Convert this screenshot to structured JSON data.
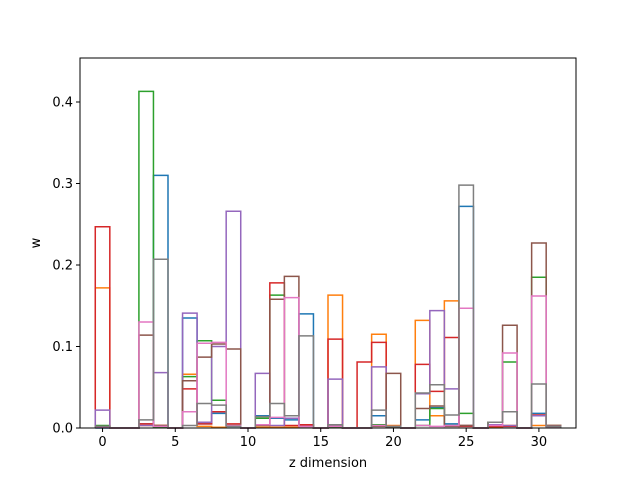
{
  "chart_data": {
    "type": "step",
    "xlabel": "z dimension",
    "ylabel": "w",
    "xlim": [
      -1.55,
      32.55
    ],
    "ylim": [
      0,
      0.454
    ],
    "xticks": [
      0,
      5,
      10,
      15,
      20,
      25,
      30
    ],
    "yticks": [
      0.0,
      0.1,
      0.2,
      0.3,
      0.4
    ],
    "xtick_labels": [
      "0",
      "5",
      "10",
      "15",
      "20",
      "25",
      "30"
    ],
    "ytick_labels": [
      "0.0",
      "0.1",
      "0.2",
      "0.3",
      "0.4"
    ],
    "x": [
      0,
      1,
      2,
      3,
      4,
      5,
      6,
      7,
      8,
      9,
      10,
      11,
      12,
      13,
      14,
      15,
      16,
      17,
      18,
      19,
      20,
      21,
      22,
      23,
      24,
      25,
      26,
      27,
      28,
      29,
      30,
      31
    ],
    "series": [
      {
        "color": "#1f77b4",
        "values": [
          0,
          0,
          0,
          0.005,
          0.31,
          0,
          0.135,
          0.005,
          0.018,
          0.002,
          0,
          0.015,
          0.012,
          0.01,
          0.14,
          0,
          0.002,
          0,
          0,
          0.015,
          0.002,
          0,
          0.01,
          0.025,
          0.005,
          0.272,
          0,
          0.002,
          0.002,
          0,
          0.018,
          0.003
        ]
      },
      {
        "color": "#ff7f0e",
        "values": [
          0.172,
          0,
          0,
          0.003,
          0.003,
          0,
          0.066,
          0.002,
          0.001,
          0.003,
          0,
          0.001,
          0.001,
          0.001,
          0.002,
          0,
          0.163,
          0,
          0,
          0.115,
          0.003,
          0,
          0.132,
          0.015,
          0.156,
          0.003,
          0,
          0.001,
          0.003,
          0,
          0.003,
          0.003
        ]
      },
      {
        "color": "#2ca02c",
        "values": [
          0.003,
          0,
          0,
          0.413,
          0.001,
          0,
          0.063,
          0.107,
          0.034,
          0.003,
          0,
          0.012,
          0.163,
          0.012,
          0.003,
          0,
          0.001,
          0,
          0,
          0.004,
          0.001,
          0,
          0.003,
          0.024,
          0.003,
          0.018,
          0,
          0.007,
          0.081,
          0,
          0.185,
          0.002
        ]
      },
      {
        "color": "#d62728",
        "values": [
          0.247,
          0,
          0,
          0.005,
          0.003,
          0,
          0.048,
          0.005,
          0.02,
          0.005,
          0,
          0.004,
          0.178,
          0.003,
          0.004,
          0,
          0.109,
          0,
          0.081,
          0.105,
          0.002,
          0,
          0.078,
          0.045,
          0.111,
          0.002,
          0,
          0.002,
          0.002,
          0,
          0.016,
          0.002
        ]
      },
      {
        "color": "#9467bd",
        "values": [
          0.022,
          0,
          0,
          0.003,
          0.068,
          0,
          0.141,
          0.007,
          0.1,
          0.266,
          0,
          0.067,
          0.003,
          0.012,
          0.002,
          0,
          0.06,
          0,
          0,
          0.075,
          0.002,
          0,
          0.042,
          0.144,
          0.048,
          0.003,
          0,
          0.004,
          0.003,
          0,
          0.015,
          0.002
        ]
      },
      {
        "color": "#8c564b",
        "values": [
          0.002,
          0,
          0,
          0.114,
          0.003,
          0,
          0.058,
          0.087,
          0.103,
          0.097,
          0,
          0.003,
          0.158,
          0.186,
          0.002,
          0,
          0.002,
          0,
          0,
          0.002,
          0.067,
          0,
          0.024,
          0.027,
          0.002,
          0.003,
          0,
          0.007,
          0.126,
          0,
          0.227,
          0.003
        ]
      },
      {
        "color": "#e377c2",
        "values": [
          0.001,
          0,
          0,
          0.13,
          0.002,
          0,
          0.02,
          0.104,
          0.105,
          0.003,
          0,
          0.004,
          0.013,
          0.16,
          0.002,
          0,
          0.002,
          0,
          0,
          0.003,
          0.002,
          0,
          0.003,
          0.002,
          0.003,
          0.147,
          0,
          0.003,
          0.092,
          0,
          0.162,
          0.002
        ]
      },
      {
        "color": "#7f7f7f",
        "values": [
          0.002,
          0,
          0,
          0.01,
          0.207,
          0,
          0.003,
          0.03,
          0.028,
          0.002,
          0,
          0.014,
          0.03,
          0.015,
          0.113,
          0,
          0.004,
          0,
          0,
          0.022,
          0.002,
          0,
          0.043,
          0.053,
          0.016,
          0.298,
          0,
          0.007,
          0.02,
          0,
          0.054,
          0.002
        ]
      }
    ]
  }
}
